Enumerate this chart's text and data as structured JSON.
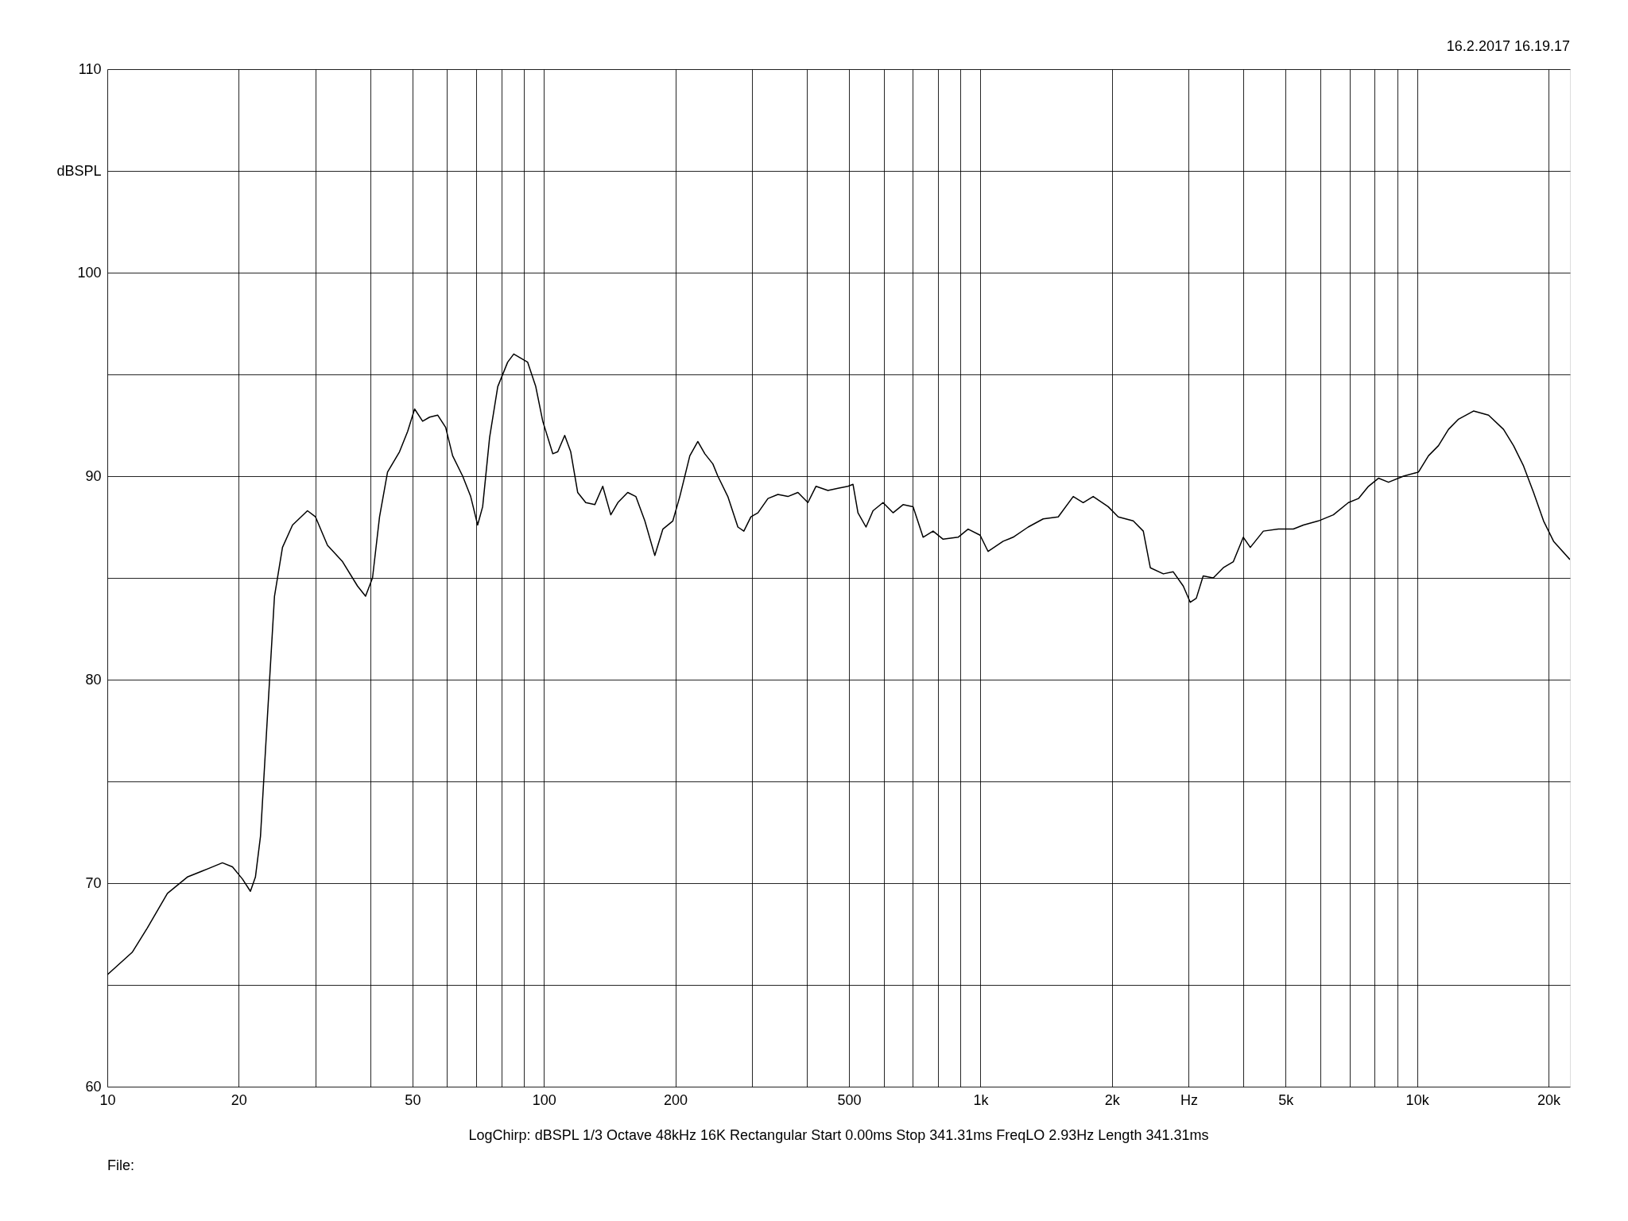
{
  "chart_data": {
    "type": "line",
    "x": [
      10,
      11.4,
      12.35,
      13.73,
      15.25,
      16.96,
      18.35,
      19.35,
      20.4,
      21.27,
      21.84,
      22.43,
      23.27,
      24.15,
      25.19,
      26.56,
      28.74,
      29.98,
      31.94,
      34.58,
      37.42,
      39.04,
      40.5,
      42.03,
      43.84,
      46.7,
      48.74,
      50.57,
      52.75,
      54.74,
      57.1,
      59.56,
      61.8,
      65.16,
      67.97,
      70.5,
      72.4,
      75.1,
      78.4,
      82.6,
      85.3,
      91.8,
      95.8,
      99.4,
      104.8,
      107.6,
      111.6,
      115.2,
      119.5,
      124.7,
      130.8,
      136.4,
      142.3,
      147.7,
      155.6,
      162.4,
      170.3,
      179.5,
      187.3,
      197.4,
      204.8,
      215.9,
      225.2,
      233.7,
      243.8,
      250.3,
      263.8,
      278.2,
      287.1,
      298,
      309.2,
      326,
      343.6,
      362.2,
      381.8,
      402.5,
      419.9,
      447.3,
      471.6,
      497.2,
      510.5,
      524.1,
      546.8,
      567.4,
      598.1,
      630.6,
      664.8,
      700.9,
      738.9,
      778.9,
      821.1,
      888.8,
      936.8,
      998,
      1041,
      1127,
      1188,
      1286,
      1392,
      1507,
      1631,
      1719,
      1812,
      1961,
      2068,
      2238,
      2360,
      2449,
      2623,
      2764,
      2914,
      3024,
      3121,
      3237,
      3414,
      3599,
      3795,
      4000,
      4150,
      4446,
      4812,
      5208,
      5491,
      5943,
      6432,
      6962,
      7340,
      7739,
      8159,
      8601,
      9309,
      10075,
      10620,
      11195,
      11803,
      12443,
      13467,
      14578,
      15779,
      16634,
      17535,
      18486,
      19488,
      20544,
      22400
    ],
    "series": [
      {
        "color": "#000000",
        "values": [
          65.5,
          66.6,
          67.8,
          69.5,
          70.3,
          70.7,
          71.0,
          70.8,
          70.2,
          69.6,
          70.3,
          72.3,
          78.2,
          84.1,
          86.5,
          87.6,
          88.3,
          88.0,
          86.6,
          85.8,
          84.6,
          84.1,
          85.0,
          88.0,
          90.2,
          91.2,
          92.2,
          93.3,
          92.7,
          92.9,
          93.0,
          92.4,
          91.0,
          90.0,
          89.0,
          87.6,
          88.5,
          91.9,
          94.4,
          95.6,
          96.0,
          95.6,
          94.4,
          92.7,
          91.1,
          91.2,
          92.0,
          91.2,
          89.2,
          88.7,
          88.6,
          89.5,
          88.1,
          88.7,
          89.2,
          89.0,
          87.8,
          86.1,
          87.4,
          87.8,
          89.0,
          91.0,
          91.7,
          91.1,
          90.6,
          90.0,
          89.0,
          87.5,
          87.3,
          88.0,
          88.2,
          88.9,
          89.1,
          89.0,
          89.2,
          88.7,
          89.5,
          89.3,
          89.4,
          89.5,
          89.6,
          88.2,
          87.5,
          88.3,
          88.7,
          88.2,
          88.6,
          88.5,
          87.0,
          87.3,
          86.9,
          87.0,
          87.4,
          87.1,
          86.3,
          86.8,
          87.0,
          87.5,
          87.9,
          88.0,
          89.0,
          88.7,
          89.0,
          88.5,
          88.0,
          87.8,
          87.3,
          85.5,
          85.2,
          85.3,
          84.6,
          83.8,
          84.0,
          85.1,
          85.0,
          85.5,
          85.8,
          87.0,
          86.5,
          87.3,
          87.4,
          87.4,
          87.6,
          87.8,
          88.1,
          88.7,
          88.9,
          89.5,
          89.9,
          89.7,
          90.0,
          90.2,
          91.0,
          91.5,
          92.3,
          92.8,
          93.2,
          93.0,
          92.3,
          91.5,
          90.5,
          89.2,
          87.8,
          86.8,
          85.9
        ]
      }
    ],
    "log": "x",
    "xlim": [
      10,
      22400
    ],
    "xticks": [
      10,
      20,
      {
        "value": 30,
        "label": null
      },
      {
        "value": 40,
        "label": null
      },
      50,
      {
        "value": 60,
        "label": null
      },
      {
        "value": 70,
        "label": null
      },
      {
        "value": 80,
        "label": null
      },
      {
        "value": 90,
        "label": null
      },
      100,
      200,
      {
        "value": 300,
        "label": null
      },
      {
        "value": 400,
        "label": null
      },
      500,
      {
        "value": 600,
        "label": null
      },
      {
        "value": 700,
        "label": null
      },
      {
        "value": 800,
        "label": null
      },
      {
        "value": 900,
        "label": null
      },
      {
        "value": 1000,
        "label": "1k"
      },
      {
        "value": 2000,
        "label": "2k"
      },
      {
        "value": 3000,
        "label": "Hz"
      },
      {
        "value": 4000,
        "label": null
      },
      {
        "value": 5000,
        "label": "5k"
      },
      {
        "value": 6000,
        "label": null
      },
      {
        "value": 7000,
        "label": null
      },
      {
        "value": 8000,
        "label": null
      },
      {
        "value": 9000,
        "label": null
      },
      {
        "value": 10000,
        "label": "10k"
      },
      {
        "value": 20000,
        "label": "20k"
      }
    ],
    "ylim": [
      60,
      110
    ],
    "yticks": [
      60,
      {
        "value": 65,
        "label": null
      },
      70,
      {
        "value": 75,
        "label": null
      },
      80,
      {
        "value": 85,
        "label": null
      },
      90,
      {
        "value": 95,
        "label": null
      },
      100,
      {
        "value": 105,
        "label": "dBSPL"
      },
      110
    ],
    "grid": true,
    "annotations": [
      "16.2.2017 16.19.17",
      "LogChirp:  dBSPL   1/3 Octave   48kHz   16K   Rectangular   Start 0.00ms    Stop 341.31ms    FreqLO 2.93Hz    Length 341.31ms",
      "File:"
    ]
  }
}
